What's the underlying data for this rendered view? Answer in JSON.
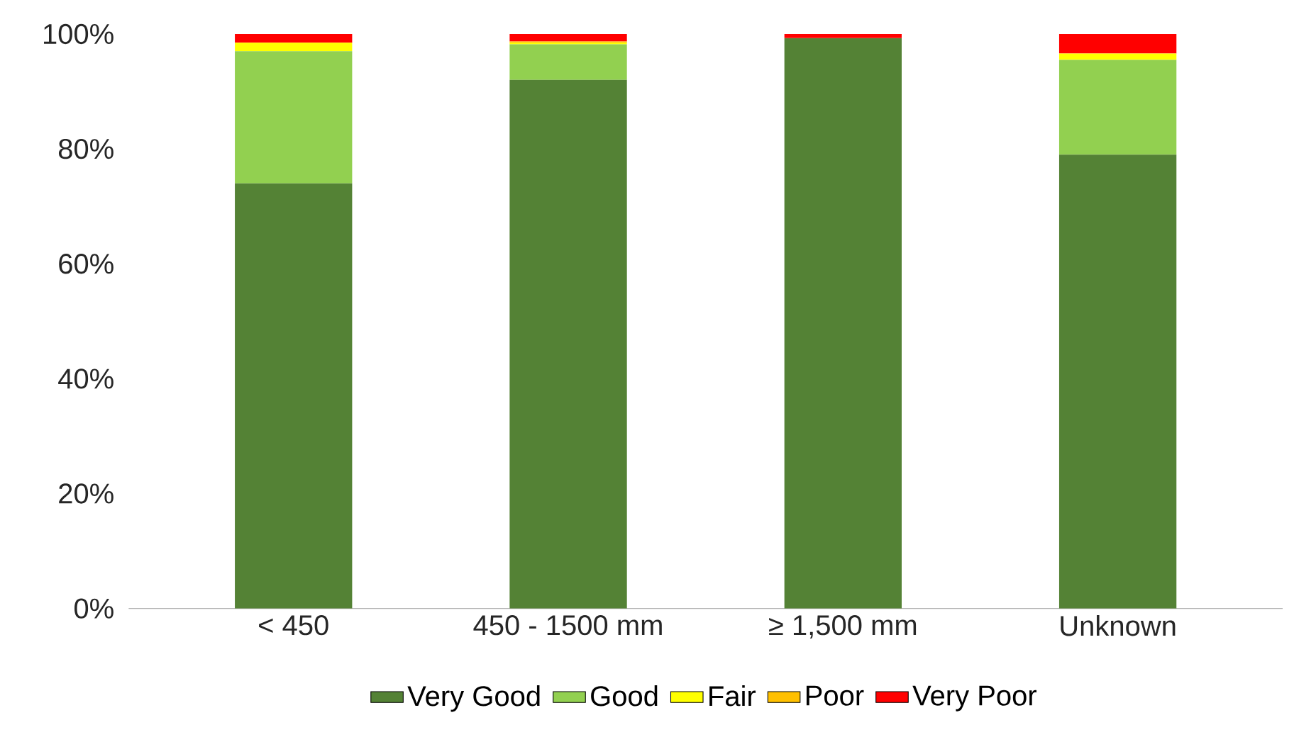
{
  "chart_data": {
    "type": "bar",
    "stacked": true,
    "categories": [
      "< 450",
      "450 - 1500 mm",
      "≥ 1,500 mm",
      "Unknown"
    ],
    "series": [
      {
        "name": "Very Good",
        "color": "#548235",
        "values": [
          74,
          92,
          99.3,
          79
        ]
      },
      {
        "name": "Good",
        "color": "#92d050",
        "values": [
          23,
          6.2,
          0,
          16.5
        ]
      },
      {
        "name": "Fair",
        "color": "#ffff00",
        "values": [
          1.5,
          0.3,
          0,
          1.1
        ]
      },
      {
        "name": "Poor",
        "color": "#ffc000",
        "values": [
          0,
          0.2,
          0,
          0
        ]
      },
      {
        "name": "Very Poor",
        "color": "#ff0000",
        "values": [
          1.5,
          1.3,
          0.7,
          3.4
        ]
      }
    ],
    "ylim": [
      0,
      100
    ],
    "yticks": [
      {
        "value": 0,
        "label": "0%"
      },
      {
        "value": 20,
        "label": "20%"
      },
      {
        "value": 40,
        "label": "40%"
      },
      {
        "value": 60,
        "label": "60%"
      },
      {
        "value": 80,
        "label": "80%"
      },
      {
        "value": 100,
        "label": "100%"
      }
    ],
    "legend": "bottom"
  }
}
